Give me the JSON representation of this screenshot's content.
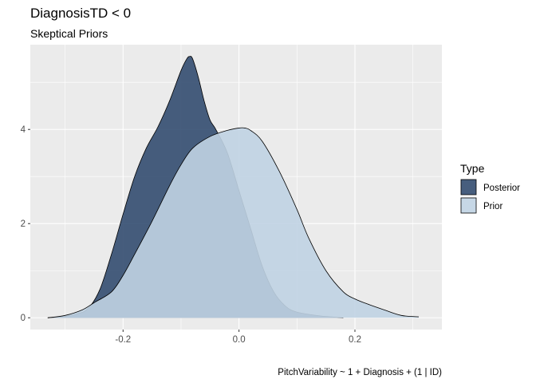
{
  "chart_data": {
    "type": "area",
    "title": "DiagnosisTD < 0",
    "subtitle": "Skeptical Priors",
    "caption": "PitchVariability ~ 1 + Diagnosis + (1 | ID)",
    "xlabel": "",
    "ylabel": "",
    "xlim": [
      -0.36,
      0.35
    ],
    "ylim": [
      -0.25,
      5.8
    ],
    "xticks": [
      -0.2,
      0.0,
      0.2
    ],
    "xtick_labels": [
      "-0.2",
      "0.0",
      "0.2"
    ],
    "yticks": [
      0,
      2,
      4
    ],
    "ytick_labels": [
      "0",
      "2",
      "4"
    ],
    "grid": true,
    "legend": {
      "title": "Type",
      "position": "right"
    },
    "series": [
      {
        "name": "Prior",
        "color": "#c0d3e3",
        "opacity": 0.9,
        "x": [
          -0.33,
          -0.3,
          -0.27,
          -0.25,
          -0.22,
          -0.2,
          -0.18,
          -0.15,
          -0.12,
          -0.1,
          -0.08,
          -0.05,
          -0.02,
          0.0,
          0.01,
          0.02,
          0.04,
          0.07,
          0.1,
          0.12,
          0.15,
          0.18,
          0.2,
          0.22,
          0.25,
          0.28,
          0.31
        ],
        "values": [
          0.0,
          0.05,
          0.17,
          0.32,
          0.55,
          0.9,
          1.35,
          2.05,
          2.8,
          3.25,
          3.6,
          3.85,
          3.98,
          4.03,
          4.03,
          3.98,
          3.75,
          3.1,
          2.3,
          1.7,
          1.0,
          0.55,
          0.4,
          0.3,
          0.17,
          0.05,
          0.02
        ]
      },
      {
        "name": "Posterior",
        "color": "#334c70",
        "opacity": 0.9,
        "x": [
          -0.33,
          -0.3,
          -0.28,
          -0.26,
          -0.24,
          -0.22,
          -0.2,
          -0.18,
          -0.16,
          -0.14,
          -0.12,
          -0.1,
          -0.09,
          -0.085,
          -0.08,
          -0.07,
          -0.06,
          -0.05,
          -0.04,
          -0.02,
          0.0,
          0.02,
          0.04,
          0.06,
          0.08,
          0.1,
          0.14,
          0.18
        ],
        "values": [
          0.0,
          0.03,
          0.08,
          0.2,
          0.6,
          1.35,
          2.2,
          3.0,
          3.6,
          4.05,
          4.6,
          5.25,
          5.5,
          5.55,
          5.5,
          5.1,
          4.6,
          4.2,
          4.0,
          3.5,
          2.7,
          1.9,
          1.1,
          0.55,
          0.25,
          0.12,
          0.04,
          0.0
        ]
      }
    ]
  }
}
